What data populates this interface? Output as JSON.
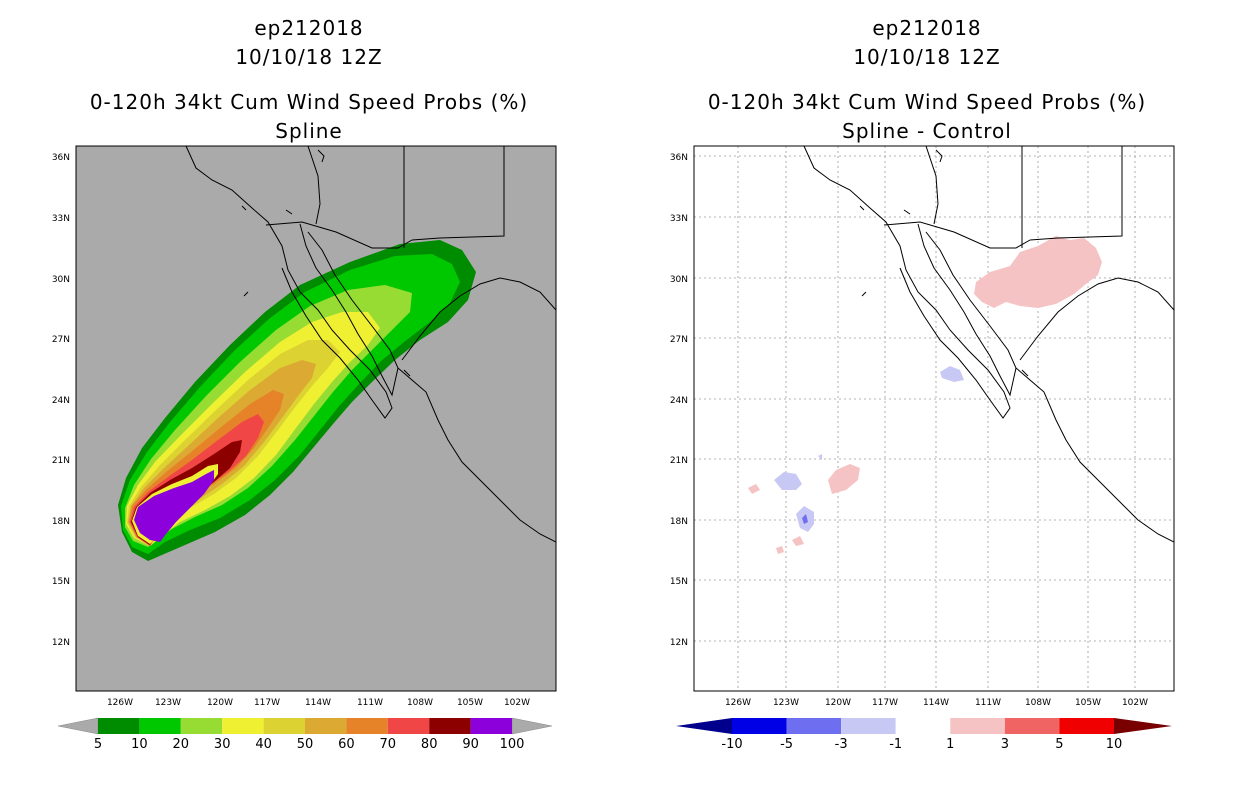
{
  "panels": {
    "left": {
      "storm_id": "ep212018",
      "date": "10/10/18 12Z",
      "product": "0-120h 34kt Cum Wind Speed Probs (%)",
      "subtitle": "Spline",
      "colorbar": {
        "labels": [
          "5",
          "10",
          "20",
          "30",
          "40",
          "50",
          "60",
          "70",
          "80",
          "90",
          "100"
        ],
        "colors": [
          "#008c00",
          "#00c800",
          "#96dc32",
          "#f0f032",
          "#dcd232",
          "#dcaa32",
          "#e68228",
          "#f04646",
          "#8c0000",
          "#8c00dc"
        ],
        "end_color": "#aaaaaa"
      }
    },
    "right": {
      "storm_id": "ep212018",
      "date": "10/10/18 12Z",
      "product": "0-120h 34kt Cum Wind Speed Probs (%)",
      "subtitle": "Spline - Control",
      "colorbar": {
        "labels": [
          "-10",
          "-5",
          "-3",
          "-1",
          "1",
          "3",
          "5",
          "10"
        ],
        "colors": [
          "#0000e6",
          "#6e6ef0",
          "#c8c8f5",
          "#ffffff",
          "#f5c3c3",
          "#f06464",
          "#f00000"
        ],
        "end_low": "#00008c",
        "end_high": "#780000"
      }
    }
  },
  "axes": {
    "lat_labels": [
      "36N",
      "33N",
      "30N",
      "27N",
      "24N",
      "21N",
      "18N",
      "15N",
      "12N"
    ],
    "lon_labels": [
      "126W",
      "123W",
      "120W",
      "117W",
      "114W",
      "111W",
      "108W",
      "105W",
      "102W"
    ]
  },
  "colors": {
    "map_background_left": "#aaaaaa",
    "map_background_right": "#ffffff"
  }
}
